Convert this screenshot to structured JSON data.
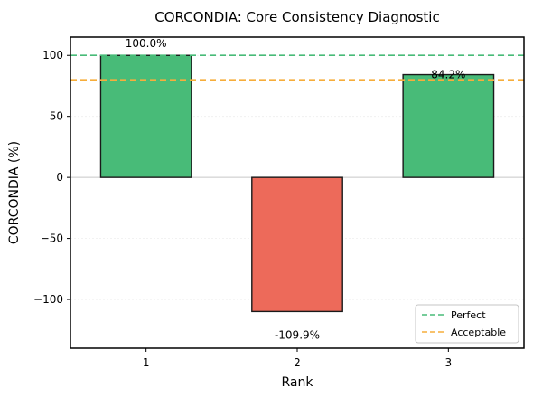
{
  "chart_data": {
    "type": "bar",
    "title": "CORCONDIA: Core Consistency Diagnostic",
    "xlabel": "Rank",
    "ylabel": "CORCONDIA (%)",
    "categories": [
      "1",
      "2",
      "3"
    ],
    "values": [
      100.0,
      -109.9,
      84.2
    ],
    "value_labels": [
      "100.0%",
      "-109.9%",
      "84.2%"
    ],
    "bar_colors": [
      "#48bb78",
      "#ed6a5a",
      "#48bb78"
    ],
    "ylim": [
      -140,
      115
    ],
    "yticks": [
      100,
      50,
      0,
      -50,
      -100
    ],
    "ytick_labels": [
      "100",
      "50",
      "0",
      "−50",
      "−100"
    ],
    "grid": true,
    "reference_lines": [
      {
        "name": "Perfect",
        "value": 100,
        "color": "#48bb78",
        "style": "dashed"
      },
      {
        "name": "Acceptable",
        "value": 80,
        "color": "#f6ad3b",
        "style": "dashed"
      }
    ],
    "legend_position": "lower-right"
  }
}
